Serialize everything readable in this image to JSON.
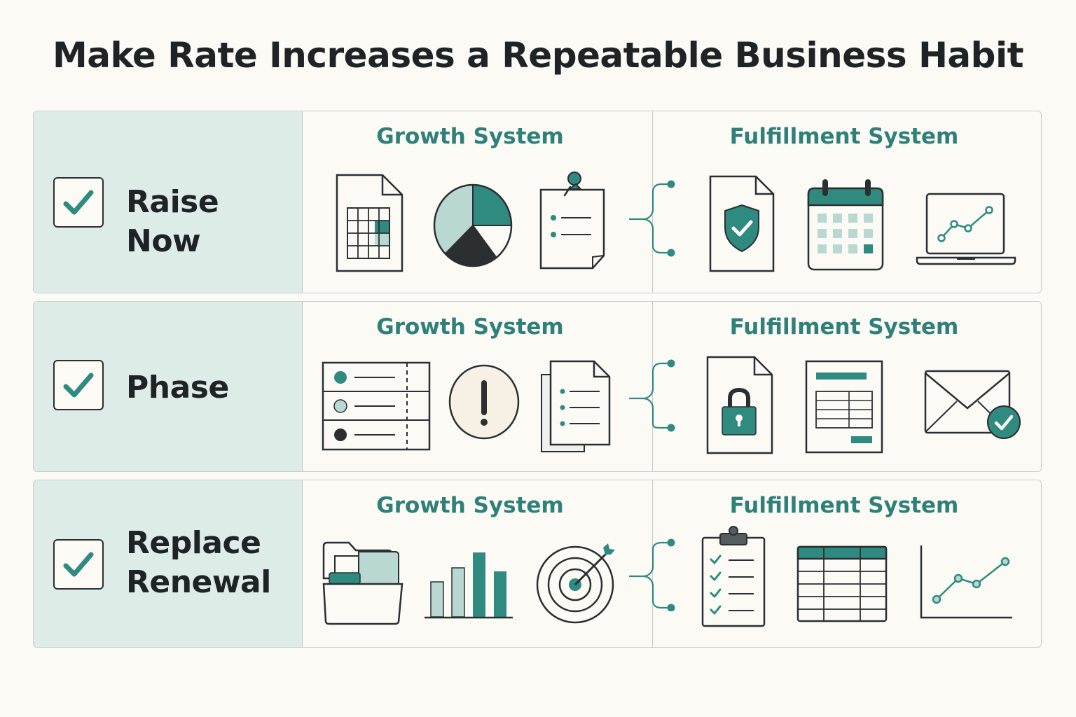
{
  "title": "Make Rate Increases a Repeatable Business Habit",
  "colors": {
    "accent": "#2f8a80",
    "light_accent": "#b9d8d2",
    "dark": "#2b2f31",
    "label_bg": "#deece8"
  },
  "rows": [
    {
      "label": "Raise Now",
      "growth_heading": "Growth System",
      "fulfillment_heading": "Fulfillment System",
      "growth_icons": [
        "spreadsheet-document-icon",
        "pie-chart-icon",
        "pinned-checklist-icon"
      ],
      "fulfillment_icons": [
        "shield-check-document-icon",
        "calendar-icon",
        "laptop-line-chart-icon"
      ]
    },
    {
      "label": "Phase",
      "growth_heading": "Growth System",
      "fulfillment_heading": "Fulfillment System",
      "growth_icons": [
        "phased-list-icon",
        "alert-circle-icon",
        "stacked-documents-icon"
      ],
      "fulfillment_icons": [
        "lock-document-icon",
        "invoice-table-icon",
        "email-check-icon"
      ]
    },
    {
      "label_line1": "Replace",
      "label_line2": "Renewal",
      "growth_heading": "Growth System",
      "fulfillment_heading": "Fulfillment System",
      "growth_icons": [
        "folder-icon",
        "bar-chart-icon",
        "target-icon"
      ],
      "fulfillment_icons": [
        "clipboard-checklist-icon",
        "table-grid-icon",
        "line-chart-icon"
      ]
    }
  ]
}
